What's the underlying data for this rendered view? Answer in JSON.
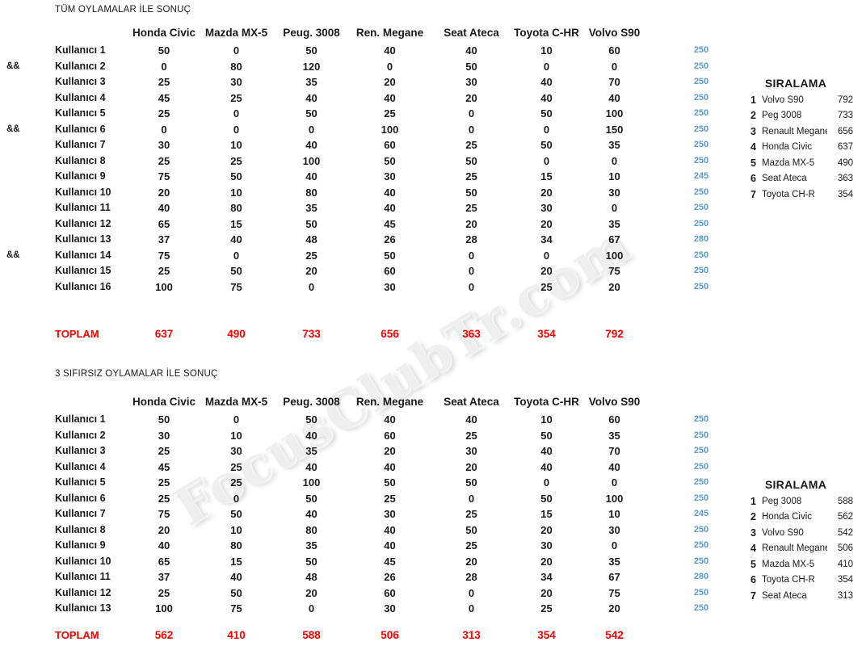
{
  "watermark": "FocusClubTr.com",
  "colors": {
    "sum_blue": "#5B9BD5",
    "total_red": "#FF0000"
  },
  "columns": [
    "Honda Civic",
    "Mazda MX-5",
    "Peug. 3008",
    "Ren. Megane",
    "Seat Ateca",
    "Toyota C-HR",
    "Volvo S90"
  ],
  "tables": [
    {
      "title": "TÜM OYLAMALAR İLE SONUÇ",
      "rows": [
        {
          "marker": "",
          "label": "Kullanıcı 1",
          "values": [
            50,
            0,
            50,
            40,
            40,
            10,
            60
          ],
          "sum": 250
        },
        {
          "marker": "&&",
          "label": "Kullanıcı 2",
          "values": [
            0,
            80,
            120,
            0,
            50,
            0,
            0
          ],
          "sum": 250
        },
        {
          "marker": "",
          "label": "Kullanıcı 3",
          "values": [
            25,
            30,
            35,
            20,
            30,
            40,
            70
          ],
          "sum": 250
        },
        {
          "marker": "",
          "label": "Kullanıcı 4",
          "values": [
            45,
            25,
            40,
            40,
            20,
            40,
            40
          ],
          "sum": 250
        },
        {
          "marker": "",
          "label": "Kullanıcı 5",
          "values": [
            25,
            0,
            50,
            25,
            0,
            50,
            100
          ],
          "sum": 250
        },
        {
          "marker": "&&",
          "label": "Kullanıcı 6",
          "values": [
            0,
            0,
            0,
            100,
            0,
            0,
            150
          ],
          "sum": 250
        },
        {
          "marker": "",
          "label": "Kullanıcı 7",
          "values": [
            30,
            10,
            40,
            60,
            25,
            50,
            35
          ],
          "sum": 250
        },
        {
          "marker": "",
          "label": "Kullanıcı 8",
          "values": [
            25,
            25,
            100,
            50,
            50,
            0,
            0
          ],
          "sum": 250
        },
        {
          "marker": "",
          "label": "Kullanıcı 9",
          "values": [
            75,
            50,
            40,
            30,
            25,
            15,
            10
          ],
          "sum": 245
        },
        {
          "marker": "",
          "label": "Kullanıcı 10",
          "values": [
            20,
            10,
            80,
            40,
            50,
            20,
            30
          ],
          "sum": 250
        },
        {
          "marker": "",
          "label": "Kullanıcı 11",
          "values": [
            40,
            80,
            35,
            40,
            25,
            30,
            0
          ],
          "sum": 250
        },
        {
          "marker": "",
          "label": "Kullanıcı 12",
          "values": [
            65,
            15,
            50,
            45,
            20,
            20,
            35
          ],
          "sum": 250
        },
        {
          "marker": "",
          "label": "Kullanıcı 13",
          "values": [
            37,
            40,
            48,
            26,
            28,
            34,
            67
          ],
          "sum": 280
        },
        {
          "marker": "&&",
          "label": "Kullanıcı 14",
          "values": [
            75,
            0,
            25,
            50,
            0,
            0,
            100
          ],
          "sum": 250
        },
        {
          "marker": "",
          "label": "Kullanıcı 15",
          "values": [
            25,
            50,
            20,
            60,
            0,
            20,
            75
          ],
          "sum": 250
        },
        {
          "marker": "",
          "label": "Kullanıcı 16",
          "values": [
            100,
            75,
            0,
            30,
            0,
            25,
            20
          ],
          "sum": 250
        }
      ],
      "total_label": "TOPLAM",
      "totals": [
        637,
        490,
        733,
        656,
        363,
        354,
        792
      ],
      "ranking": {
        "title": "SIRALAMA",
        "items": [
          {
            "rank": 1,
            "name": "Volvo S90",
            "score": 792
          },
          {
            "rank": 2,
            "name": "Peg 3008",
            "score": 733
          },
          {
            "rank": 3,
            "name": "Renault Megane",
            "score": 656
          },
          {
            "rank": 4,
            "name": "Honda Civic",
            "score": 637
          },
          {
            "rank": 5,
            "name": "Mazda MX-5",
            "score": 490
          },
          {
            "rank": 6,
            "name": "Seat Ateca",
            "score": 363
          },
          {
            "rank": 7,
            "name": "Toyota CH-R",
            "score": 354
          }
        ]
      }
    },
    {
      "title": "3 SIFIRSIZ OYLAMALAR İLE SONUÇ",
      "rows": [
        {
          "marker": "",
          "label": "Kullanıcı 1",
          "values": [
            50,
            0,
            50,
            40,
            40,
            10,
            60
          ],
          "sum": 250
        },
        {
          "marker": "",
          "label": "Kullanıcı 2",
          "values": [
            30,
            10,
            40,
            60,
            25,
            50,
            35
          ],
          "sum": 250
        },
        {
          "marker": "",
          "label": "Kullanıcı 3",
          "values": [
            25,
            30,
            35,
            20,
            30,
            40,
            70
          ],
          "sum": 250
        },
        {
          "marker": "",
          "label": "Kullanıcı 4",
          "values": [
            45,
            25,
            40,
            40,
            20,
            40,
            40
          ],
          "sum": 250
        },
        {
          "marker": "",
          "label": "Kullanıcı 5",
          "values": [
            25,
            25,
            100,
            50,
            50,
            0,
            0
          ],
          "sum": 250
        },
        {
          "marker": "",
          "label": "Kullanıcı 6",
          "values": [
            25,
            0,
            50,
            25,
            0,
            50,
            100
          ],
          "sum": 250
        },
        {
          "marker": "",
          "label": "Kullanıcı 7",
          "values": [
            75,
            50,
            40,
            30,
            25,
            15,
            10
          ],
          "sum": 245
        },
        {
          "marker": "",
          "label": "Kullanıcı 8",
          "values": [
            20,
            10,
            80,
            40,
            50,
            20,
            30
          ],
          "sum": 250
        },
        {
          "marker": "",
          "label": "Kullanıcı 9",
          "values": [
            40,
            80,
            35,
            40,
            25,
            30,
            0
          ],
          "sum": 250
        },
        {
          "marker": "",
          "label": "Kullanıcı 10",
          "values": [
            65,
            15,
            50,
            45,
            20,
            20,
            35
          ],
          "sum": 250
        },
        {
          "marker": "",
          "label": "Kullanıcı 11",
          "values": [
            37,
            40,
            48,
            26,
            28,
            34,
            67
          ],
          "sum": 280
        },
        {
          "marker": "",
          "label": "Kullanıcı 12",
          "values": [
            25,
            50,
            20,
            60,
            0,
            20,
            75
          ],
          "sum": 250
        },
        {
          "marker": "",
          "label": "Kullanıcı 13",
          "values": [
            100,
            75,
            0,
            30,
            0,
            25,
            20
          ],
          "sum": 250
        }
      ],
      "total_label": "TOPLAM",
      "totals": [
        562,
        410,
        588,
        506,
        313,
        354,
        542
      ],
      "ranking": {
        "title": "SIRALAMA",
        "items": [
          {
            "rank": 1,
            "name": "Peg 3008",
            "score": 588
          },
          {
            "rank": 2,
            "name": "Honda Civic",
            "score": 562
          },
          {
            "rank": 3,
            "name": "Volvo S90",
            "score": 542
          },
          {
            "rank": 4,
            "name": "Renault Megane",
            "score": 506
          },
          {
            "rank": 5,
            "name": "Mazda MX-5",
            "score": 410
          },
          {
            "rank": 6,
            "name": "Toyota CH-R",
            "score": 354
          },
          {
            "rank": 7,
            "name": "Seat Ateca",
            "score": 313
          }
        ]
      }
    }
  ]
}
